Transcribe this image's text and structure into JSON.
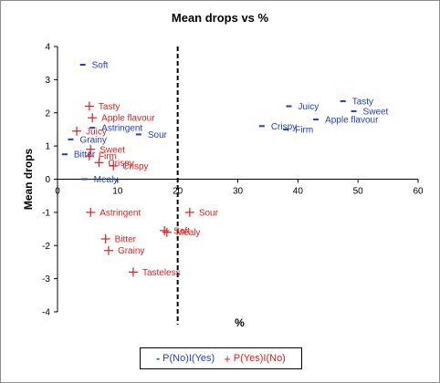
{
  "chart_data": {
    "type": "scatter",
    "title": "Mean drops vs %",
    "xlabel": "%",
    "ylabel": "Mean drops",
    "xlim": [
      0,
      60
    ],
    "ylim": [
      -4,
      4
    ],
    "xticks": [
      "0",
      "10",
      "20",
      "30",
      "40",
      "50",
      "60"
    ],
    "yticks": [
      "4",
      "3",
      "2",
      "1",
      "0",
      "-1",
      "-2",
      "-3",
      "-4"
    ],
    "reference_line": {
      "x": 20,
      "style": "dashed",
      "color": "#000000"
    },
    "legend_placement": "bottom",
    "series": [
      {
        "name": "P(No)I(Yes)",
        "marker": "dash",
        "color": "#1f3fbf",
        "points": [
          {
            "label": "Soft",
            "x": 4.2,
            "y": 3.45
          },
          {
            "label": "Astringent",
            "x": 5.8,
            "y": 1.55
          },
          {
            "label": "Sour",
            "x": 13.5,
            "y": 1.35
          },
          {
            "label": "Grainy",
            "x": 2.2,
            "y": 1.2
          },
          {
            "label": "Bitter",
            "x": 1.2,
            "y": 0.75
          },
          {
            "label": "Mealy",
            "x": 4.5,
            "y": 0.0
          },
          {
            "label": "Juicy",
            "x": 38.5,
            "y": 2.2
          },
          {
            "label": "Tasty",
            "x": 47.5,
            "y": 2.35
          },
          {
            "label": "Sweet",
            "x": 49.3,
            "y": 2.05
          },
          {
            "label": "Crispy",
            "x": 34,
            "y": 1.6
          },
          {
            "label": "Firm",
            "x": 38,
            "y": 1.5
          },
          {
            "label": "Apple flavour",
            "x": 43,
            "y": 1.8
          }
        ]
      },
      {
        "name": "P(Yes)I(No)",
        "marker": "plus",
        "color": "#d62020",
        "points": [
          {
            "label": "Tasty",
            "x": 5.3,
            "y": 2.2
          },
          {
            "label": "Apple flavour",
            "x": 5.8,
            "y": 1.85
          },
          {
            "label": "Juicy",
            "x": 3.2,
            "y": 1.45
          },
          {
            "label": "Sweet",
            "x": 5.5,
            "y": 0.9
          },
          {
            "label": "Firm",
            "x": 5.3,
            "y": 0.7
          },
          {
            "label": "Crispy",
            "x": 6.9,
            "y": 0.5
          },
          {
            "label": "Crispy",
            "x": 9.3,
            "y": 0.4
          },
          {
            "label": "Astringent",
            "x": 5.5,
            "y": -1.0
          },
          {
            "label": "Sour",
            "x": 22,
            "y": -1.0
          },
          {
            "label": "Soft",
            "x": 17.8,
            "y": -1.55
          },
          {
            "label": "Mealy",
            "x": 18.2,
            "y": -1.6
          },
          {
            "label": "Bitter",
            "x": 8,
            "y": -1.8
          },
          {
            "label": "Grainy",
            "x": 8.5,
            "y": -2.15
          },
          {
            "label": "Tasteless",
            "x": 12.6,
            "y": -2.8
          }
        ]
      }
    ]
  },
  "legend": {
    "blue_marker": "-",
    "blue_label": "P(No)I(Yes)",
    "red_marker": "+",
    "red_label": "P(Yes)I(No)"
  }
}
